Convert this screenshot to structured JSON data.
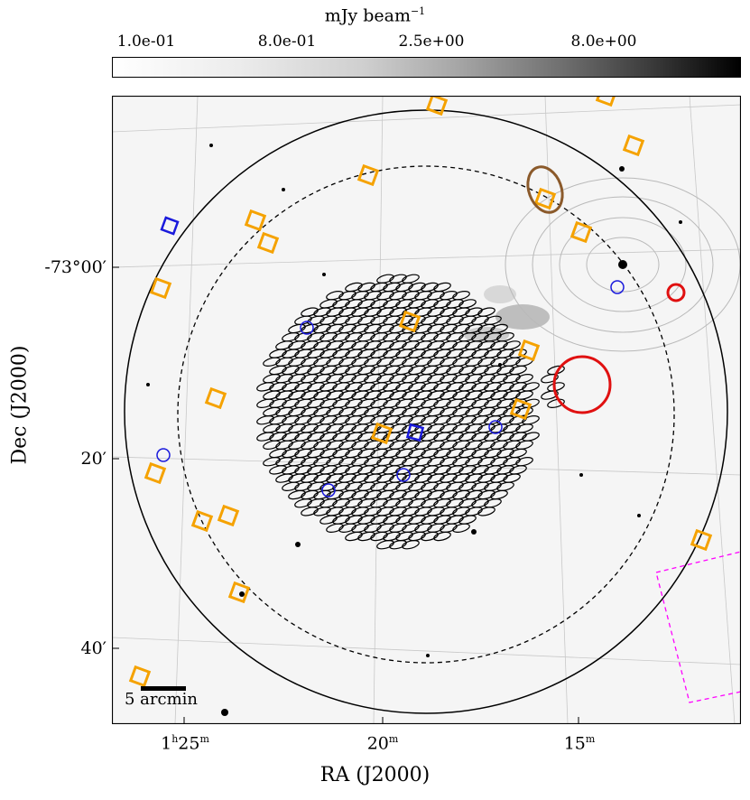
{
  "colorbar": {
    "title_main": "mJy beam",
    "title_exp": "−1",
    "ticks": [
      "1.0e-01",
      "8.0e-01",
      "2.5e+00",
      "8.0e+00"
    ],
    "cmap": [
      "#ffffff",
      "#000000"
    ]
  },
  "axes": {
    "xlabel": "RA (J2000)",
    "ylabel": "Dec (J2000)",
    "x_ticks": {
      "t1_h": "1",
      "t1_h_unit": "h",
      "t1_m": "25",
      "t1_m_unit": "m",
      "t2": "20",
      "t2_unit": "m",
      "t3": "15",
      "t3_unit": "m"
    },
    "y_ticks": [
      "-73°00′",
      "20′",
      "40′"
    ]
  },
  "scalebar": {
    "label": "5 arcmin"
  },
  "markers": {
    "orange_square_color": "#f5a200",
    "blue_circle_color": "#1a1adc",
    "red_circle_color": "#e01010",
    "brown_ellipse_color": "#8b5a2b",
    "magenta_box_color": "#ff00ff"
  }
}
